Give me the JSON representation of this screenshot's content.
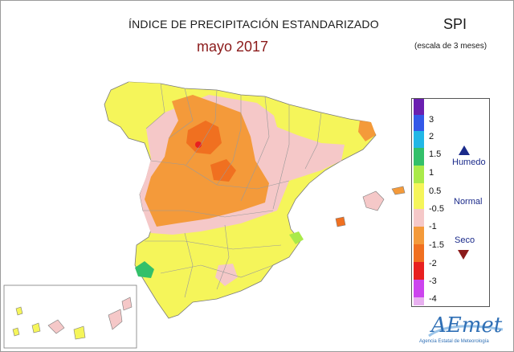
{
  "header": {
    "title": "ÍNDICE DE PRECIPITACIÓN ESTANDARIZADO",
    "subtitle": "mayo 2017",
    "index": "SPI",
    "scale": "(escala de 3 meses)"
  },
  "legend": {
    "ticks": [
      "3",
      "2",
      "1.5",
      "1",
      "0.5",
      "-0.5",
      "-1",
      "-1.5",
      "-2",
      "-3",
      "-4"
    ],
    "colors": [
      "#6a1fb0",
      "#3358e8",
      "#22b7e6",
      "#33c06a",
      "#aaea4a",
      "#f5f55a",
      "#f5c8c8",
      "#f49a3a",
      "#f07020",
      "#e82020",
      "#cc44ee",
      "#e8b0f0"
    ],
    "categories": {
      "humid": "Humedo",
      "normal": "Normal",
      "dry": "Seco"
    },
    "arrow_up_color": "#1a2a8a",
    "arrow_down_color": "#8b1a1a"
  },
  "logo": {
    "name": "AEmet",
    "tagline": "Agencia Estatal de Meteorología"
  }
}
